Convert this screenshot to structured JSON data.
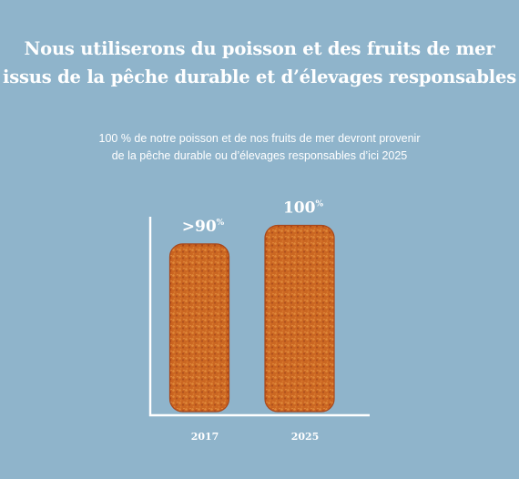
{
  "title": [
    "Nous utiliserons du poisson et des fruits de mer",
    "issus de la pêche durable et d’élevages responsables"
  ],
  "subtitle": [
    "100 % de notre poisson et de nos fruits de mer devront provenir",
    "de la pêche durable ou d’élevages responsables d’ici 2025"
  ],
  "colors": {
    "background": "#8fb4cb",
    "bar": "#c9621f",
    "bar_dark": "#a8471a",
    "bar_light": "#e08a3a",
    "axis": "#ffffff",
    "text": "#ffffff"
  },
  "chart_data": {
    "type": "bar",
    "categories": [
      "2017",
      "2025"
    ],
    "values": [
      90,
      100
    ],
    "value_labels": [
      {
        "prefix": ">",
        "number": "90",
        "suffix": "%"
      },
      {
        "prefix": "",
        "number": "100",
        "suffix": "%"
      }
    ],
    "ylim": [
      0,
      110
    ],
    "bar_style": "fish-stick",
    "grid": false,
    "legend": "none"
  }
}
